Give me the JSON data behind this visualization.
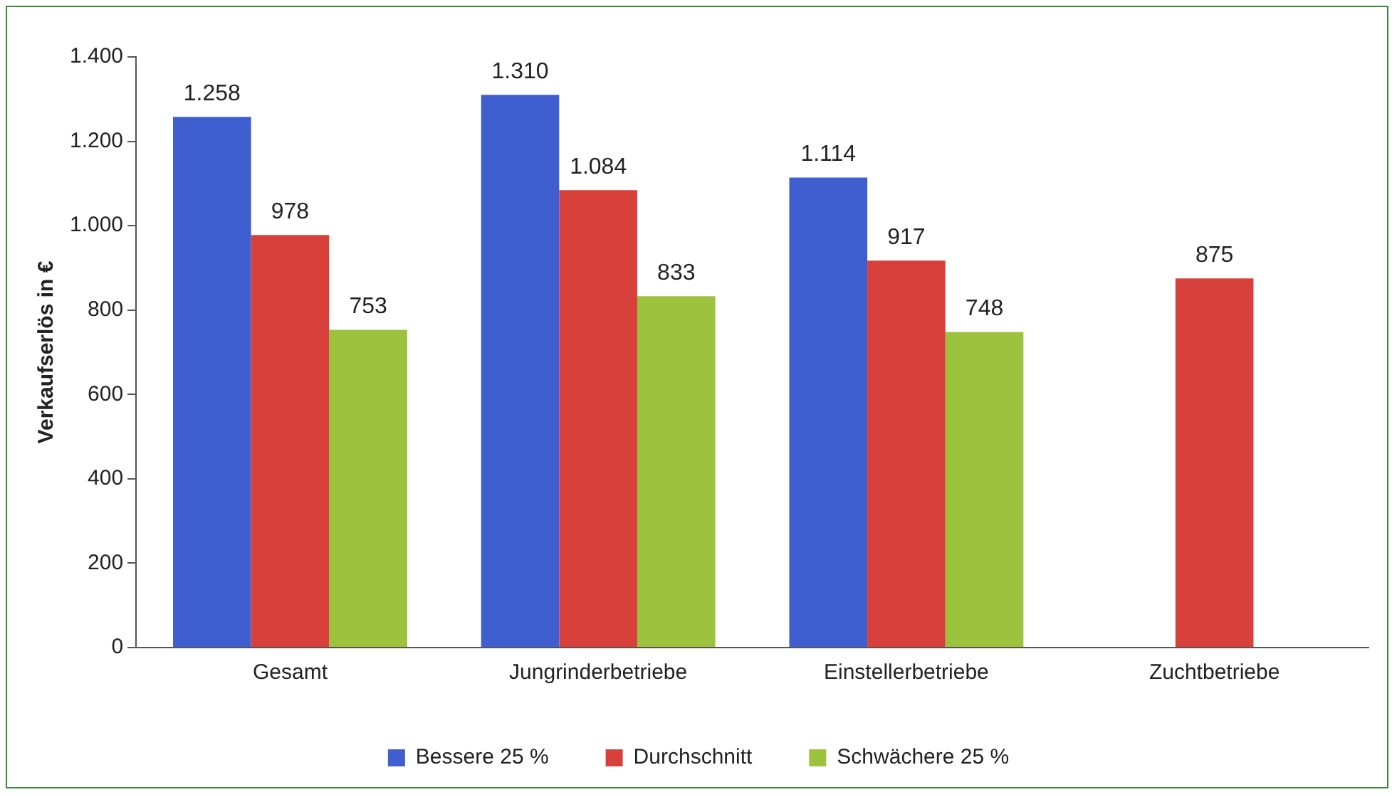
{
  "chart_data": {
    "type": "bar",
    "ylabel": "Verkaufserlös in €",
    "categories": [
      "Gesamt",
      "Jungrinderbetriebe",
      "Einstellerbetriebe",
      "Zuchtbetriebe"
    ],
    "series": [
      {
        "name": "Bessere 25 %",
        "color": "#3f5fd0",
        "values": [
          1258,
          1310,
          1114,
          null
        ],
        "value_labels": [
          "1.258",
          "1.310",
          "1.114",
          null
        ]
      },
      {
        "name": "Durchschnitt",
        "color": "#d8403c",
        "values": [
          978,
          1084,
          917,
          875
        ],
        "value_labels": [
          "978",
          "1.084",
          "917",
          "875"
        ]
      },
      {
        "name": "Schwächere 25 %",
        "color": "#9cc23e",
        "values": [
          753,
          833,
          748,
          null
        ],
        "value_labels": [
          "753",
          "833",
          "748",
          null
        ]
      }
    ],
    "ylim": [
      0,
      1400
    ],
    "yticks": [
      0,
      200,
      400,
      600,
      800,
      {
        "value": 1000,
        "label": "1.000"
      },
      {
        "value": 1200,
        "label": "1.200"
      },
      {
        "value": 1400,
        "label": "1.400"
      }
    ],
    "grid": false,
    "legend": "bottom"
  }
}
